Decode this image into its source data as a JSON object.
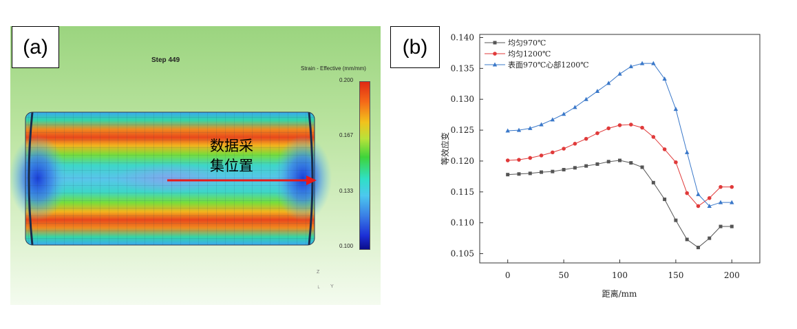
{
  "panel_a": {
    "label": "(a)",
    "step_text": "Step  449",
    "legend_title": "Strain - Effective (mm/mm)",
    "colorbar_ticks": [
      "0.200",
      "0.167",
      "0.133",
      "0.100"
    ],
    "annotation_line1": "数据采",
    "annotation_line2": "集位置",
    "triad_z": "Z",
    "triad_y": "Y"
  },
  "panel_b": {
    "label": "(b)"
  },
  "chart_data": {
    "type": "line",
    "title": "",
    "xlabel": "距离/mm",
    "ylabel": "等效应变",
    "xlim": [
      -25,
      225
    ],
    "ylim": [
      0.1035,
      0.1405
    ],
    "xticks": [
      0,
      50,
      100,
      150,
      200
    ],
    "yticks": [
      0.105,
      0.11,
      0.115,
      0.12,
      0.125,
      0.13,
      0.135,
      0.14
    ],
    "legend_position": "top-left",
    "grid": false,
    "series": [
      {
        "name": "均匀970℃",
        "marker": "square",
        "color": "#555555",
        "x": [
          0,
          10,
          20,
          30,
          40,
          50,
          60,
          70,
          80,
          90,
          100,
          110,
          120,
          130,
          140,
          150,
          160,
          170,
          180,
          190,
          200
        ],
        "values": [
          0.1178,
          0.1179,
          0.118,
          0.1182,
          0.1183,
          0.1186,
          0.1189,
          0.1192,
          0.1195,
          0.1199,
          0.1201,
          0.1197,
          0.119,
          0.1165,
          0.1138,
          0.1104,
          0.1073,
          0.106,
          0.1075,
          0.1094,
          0.1094
        ]
      },
      {
        "name": "均匀1200℃",
        "marker": "circle",
        "color": "#e03a3a",
        "x": [
          0,
          10,
          20,
          30,
          40,
          50,
          60,
          70,
          80,
          90,
          100,
          110,
          120,
          130,
          140,
          150,
          160,
          170,
          180,
          190,
          200
        ],
        "values": [
          0.1201,
          0.1202,
          0.1205,
          0.1209,
          0.1214,
          0.122,
          0.1228,
          0.1236,
          0.1245,
          0.1253,
          0.1258,
          0.1259,
          0.1254,
          0.1239,
          0.1219,
          0.1198,
          0.1148,
          0.1127,
          0.114,
          0.1158,
          0.1158
        ]
      },
      {
        "name": "表面970℃心部1200℃",
        "marker": "triangle",
        "color": "#3a78c9",
        "x": [
          0,
          10,
          20,
          30,
          40,
          50,
          60,
          70,
          80,
          90,
          100,
          110,
          120,
          130,
          140,
          150,
          160,
          170,
          180,
          190,
          200
        ],
        "values": [
          0.1249,
          0.125,
          0.1253,
          0.1259,
          0.1267,
          0.1276,
          0.1287,
          0.13,
          0.1313,
          0.1326,
          0.1341,
          0.1353,
          0.1358,
          0.1358,
          0.1333,
          0.1284,
          0.1214,
          0.1146,
          0.1127,
          0.1133,
          0.1133
        ]
      }
    ]
  }
}
